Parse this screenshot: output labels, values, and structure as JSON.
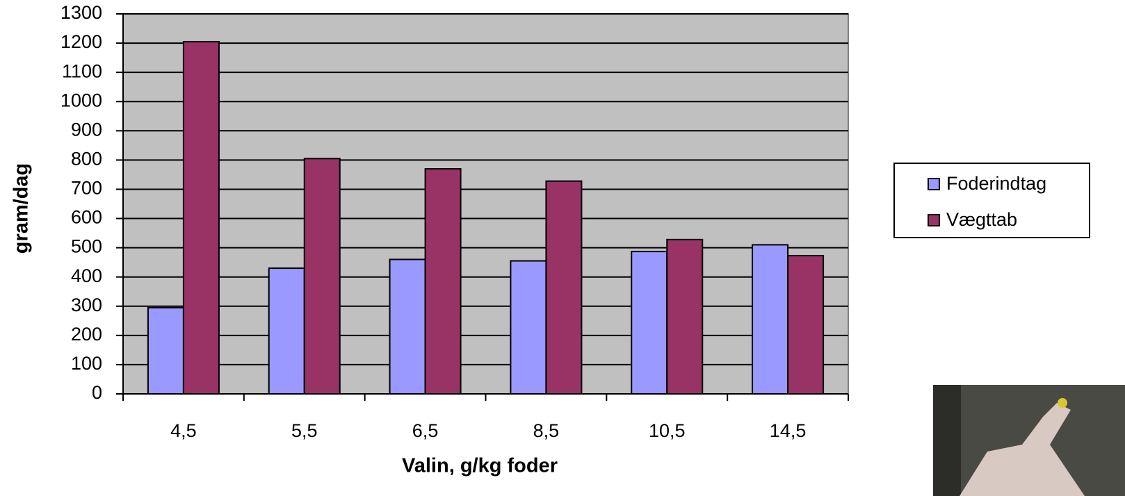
{
  "chart_data": {
    "type": "bar",
    "categories": [
      "4,5",
      "5,5",
      "6,5",
      "8,5",
      "10,5",
      "14,5"
    ],
    "series": [
      {
        "name": "Foderindtag",
        "color": "#9999ff",
        "values": [
          295,
          430,
          460,
          455,
          487,
          510
        ]
      },
      {
        "name": "Vægttab",
        "color": "#993366",
        "values": [
          1205,
          805,
          770,
          728,
          528,
          473
        ]
      }
    ],
    "ylim": [
      0,
      1300
    ],
    "yticks": [
      0,
      100,
      200,
      300,
      400,
      500,
      600,
      700,
      800,
      900,
      1000,
      1100,
      1200,
      1300
    ],
    "y_label": "gram/dag",
    "x_label": "Valin, g/kg foder",
    "grid": true,
    "legend": "right",
    "plot_background": "#c0c0c0"
  }
}
